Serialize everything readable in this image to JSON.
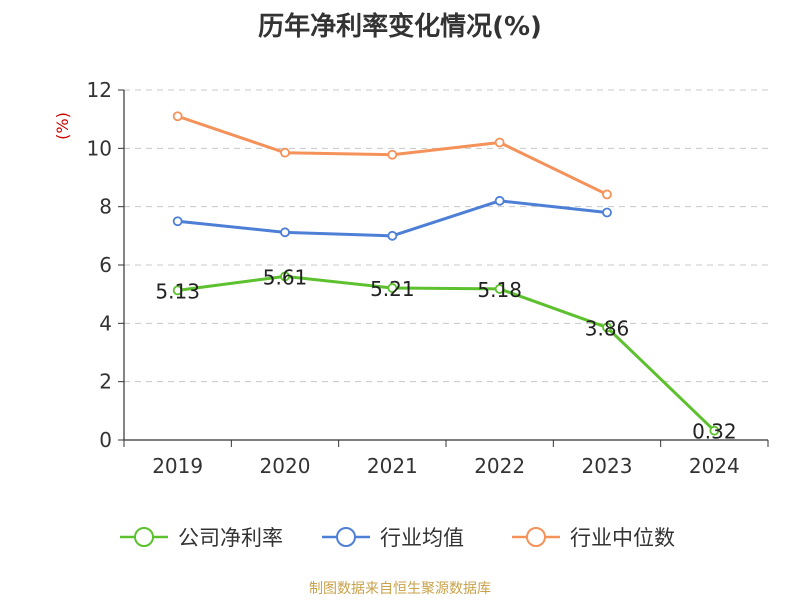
{
  "chart_data": {
    "type": "line",
    "title": "历年净利率变化情况(%)",
    "ylabel": "(%)",
    "xlabel": "",
    "categories": [
      "2019",
      "2020",
      "2021",
      "2022",
      "2023",
      "2024"
    ],
    "ylim": [
      0,
      12
    ],
    "yticks": [
      0,
      2,
      4,
      6,
      8,
      10,
      12
    ],
    "grid": true,
    "legend": "bottom",
    "series": [
      {
        "name": "公司净利率",
        "color": "#5dc12f",
        "values": [
          5.13,
          5.61,
          5.21,
          5.18,
          3.86,
          0.32
        ],
        "labels": [
          "5.13",
          "5.61",
          "5.21",
          "5.18",
          "3.86",
          "0.32"
        ]
      },
      {
        "name": "行业均值",
        "color": "#4e7fd6",
        "values": [
          7.5,
          7.12,
          7.0,
          8.2,
          7.8,
          null
        ]
      },
      {
        "name": "行业中位数",
        "color": "#f4925a",
        "values": [
          11.1,
          9.85,
          9.78,
          10.2,
          8.42,
          null
        ]
      }
    ]
  },
  "source": "制图数据来自恒生聚源数据库"
}
